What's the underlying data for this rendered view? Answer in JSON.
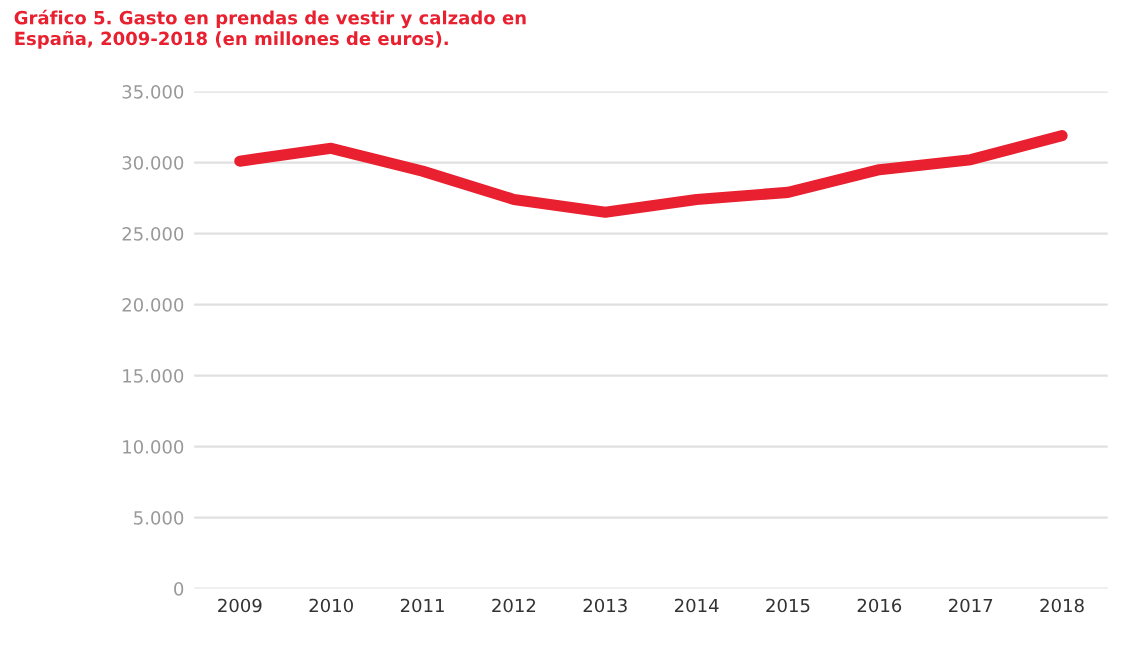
{
  "chart_data": {
    "type": "line",
    "title": "Gráfico 5. Gasto en prendas de vestir y calzado en\nEspaña, 2009-2018 (en millones de euros).",
    "categories": [
      "2009",
      "2010",
      "2011",
      "2012",
      "2013",
      "2014",
      "2015",
      "2016",
      "2017",
      "2018"
    ],
    "series": [
      {
        "color": "#e8202f",
        "values": [
          30100,
          31000,
          29400,
          27400,
          26500,
          27400,
          27900,
          29500,
          30200,
          31900
        ]
      }
    ],
    "ylim": [
      0,
      35000
    ],
    "yticks": [
      {
        "value": 0,
        "label": "0"
      },
      {
        "value": 5000,
        "label": "5.000"
      },
      {
        "value": 10000,
        "label": "10.000"
      },
      {
        "value": 15000,
        "label": "15.000"
      },
      {
        "value": 20000,
        "label": "20.000"
      },
      {
        "value": 25000,
        "label": "25.000"
      },
      {
        "value": 30000,
        "label": "30.000"
      },
      {
        "value": 35000,
        "label": "35.000"
      }
    ],
    "grid": "y",
    "line_style": "solid",
    "marker": "none",
    "legend": false
  }
}
